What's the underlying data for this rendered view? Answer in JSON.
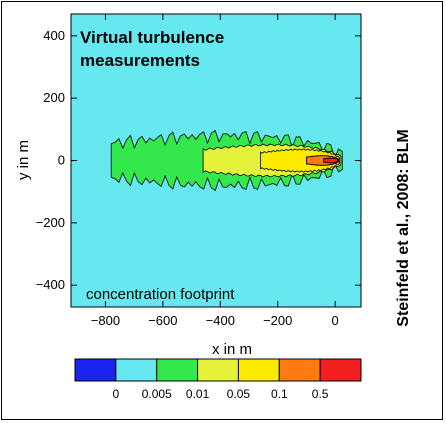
{
  "chart_data": {
    "type": "heatmap",
    "title": "Virtual turbulence measurements",
    "title_lines": [
      "Virtual turbulence",
      "measurements"
    ],
    "annotation": "concentration footprint",
    "side_label": "Steinfeld et al., 2008: BLM",
    "xlabel": "x in m",
    "ylabel": "y in m",
    "xlim": [
      -920,
      90
    ],
    "ylim": [
      -470,
      470
    ],
    "xticks": [
      -800,
      -600,
      -400,
      -200,
      0
    ],
    "yticks": [
      -400,
      -200,
      0,
      200,
      400
    ],
    "xtick_labels": [
      "−800",
      "−600",
      "−400",
      "−200",
      "0"
    ],
    "ytick_labels": [
      "−400",
      "−200",
      "0",
      "200",
      "400"
    ],
    "background_color": "#66E8F0",
    "source_point": [
      0,
      0
    ],
    "levels": [
      {
        "name": "0.005–0.01",
        "color": "#33E84D",
        "extent_x": [
          -780,
          25
        ],
        "half_width": 125
      },
      {
        "name": "0.01–0.05",
        "color": "#E5F23A",
        "extent_x": [
          -460,
          20
        ],
        "half_width": 78
      },
      {
        "name": "0.05–0.1",
        "color": "#FCEA00",
        "extent_x": [
          -260,
          15
        ],
        "half_width": 55
      },
      {
        "name": "0.1–0.5",
        "color": "#FF7A10",
        "extent_x": [
          -100,
          12
        ],
        "half_width": 24
      },
      {
        "name": "0.5+",
        "color": "#F22020",
        "extent_x": [
          -40,
          10
        ],
        "half_width": 12
      }
    ],
    "colorbar": {
      "colors": [
        "#1A24F0",
        "#66E8F0",
        "#33E84D",
        "#E5F23A",
        "#FCEA00",
        "#FF7A10",
        "#F22020"
      ],
      "labels": [
        "0",
        "0.005",
        "0.01",
        "0.05",
        "0.1",
        "0.5"
      ]
    }
  }
}
